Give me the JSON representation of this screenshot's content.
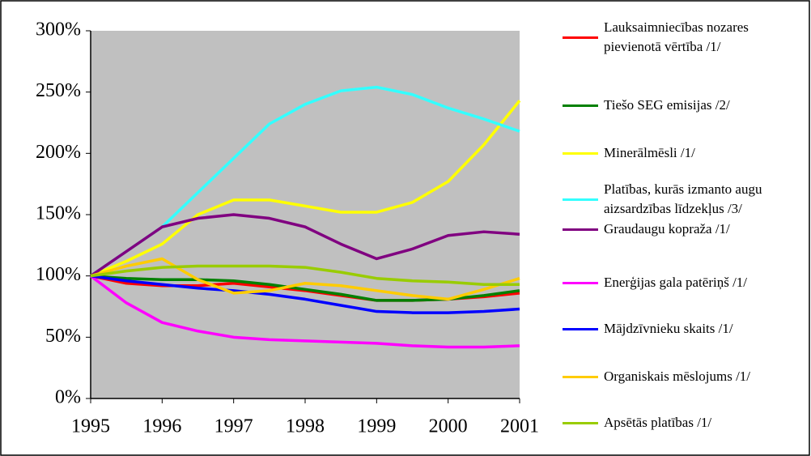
{
  "chart_data": {
    "type": "line",
    "x": [
      1995,
      1995.5,
      1996,
      1996.5,
      1997,
      1997.5,
      1998,
      1998.5,
      1999,
      1999.5,
      2000,
      2000.5,
      2001
    ],
    "xlim": [
      1995,
      2001
    ],
    "xticks": [
      1995,
      1996,
      1997,
      1998,
      1999,
      2000,
      2001
    ],
    "ylim": [
      0,
      300
    ],
    "yticks": [
      {
        "value": 0,
        "label": "0%"
      },
      {
        "value": 50,
        "label": "50%"
      },
      {
        "value": 100,
        "label": "100%"
      },
      {
        "value": 150,
        "label": "150%"
      },
      {
        "value": 200,
        "label": "200%"
      },
      {
        "value": 250,
        "label": "250%"
      },
      {
        "value": 300,
        "label": "300%"
      }
    ],
    "grid": false,
    "series": [
      {
        "name": "Lauksaimniecības nozares pievienotā vērtība /1/",
        "color": "#ff0000",
        "values": [
          100,
          94,
          92,
          92,
          94,
          91,
          88,
          84,
          80,
          80,
          81,
          83,
          86
        ]
      },
      {
        "name": "Tiešo SEG emisijas /2/",
        "color": "#008000",
        "values": [
          100,
          98,
          97,
          97,
          96,
          93,
          89,
          85,
          80,
          80,
          81,
          84,
          88
        ]
      },
      {
        "name": "Minerālmēsli /1/",
        "color": "#ffff00",
        "values": [
          100,
          112,
          126,
          150,
          162,
          162,
          157,
          152,
          152,
          160,
          177,
          207,
          243
        ]
      },
      {
        "name": "Platības, kurās izmanto augu aizsardzības līdzekļus /3/",
        "color": "#33ffff",
        "values": [
          100,
          120,
          140,
          168,
          196,
          224,
          240,
          251,
          254,
          248,
          237,
          228,
          218
        ]
      },
      {
        "name": "Graudaugu kopraža /1/",
        "color": "#800080",
        "values": [
          100,
          120,
          140,
          147,
          150,
          147,
          140,
          126,
          114,
          122,
          133,
          136,
          134
        ]
      },
      {
        "name": "Enerģijas gala patēriņš /1/",
        "color": "#ff00ff",
        "values": [
          100,
          78,
          62,
          55,
          50,
          48,
          47,
          46,
          45,
          43,
          42,
          42,
          43
        ]
      },
      {
        "name": "Mājdzīvnieku skaits /1/",
        "color": "#0000ff",
        "values": [
          100,
          96,
          93,
          90,
          88,
          85,
          81,
          76,
          71,
          70,
          70,
          71,
          73
        ]
      },
      {
        "name": "Organiskais mēslojums /1/",
        "color": "#ffcc00",
        "values": [
          100,
          108,
          114,
          97,
          86,
          88,
          94,
          92,
          88,
          84,
          81,
          89,
          98
        ]
      },
      {
        "name": "Apsētās platības /1/",
        "color": "#99cc00",
        "values": [
          100,
          104,
          107,
          108,
          108,
          108,
          107,
          103,
          98,
          96,
          95,
          93,
          93
        ]
      }
    ]
  }
}
